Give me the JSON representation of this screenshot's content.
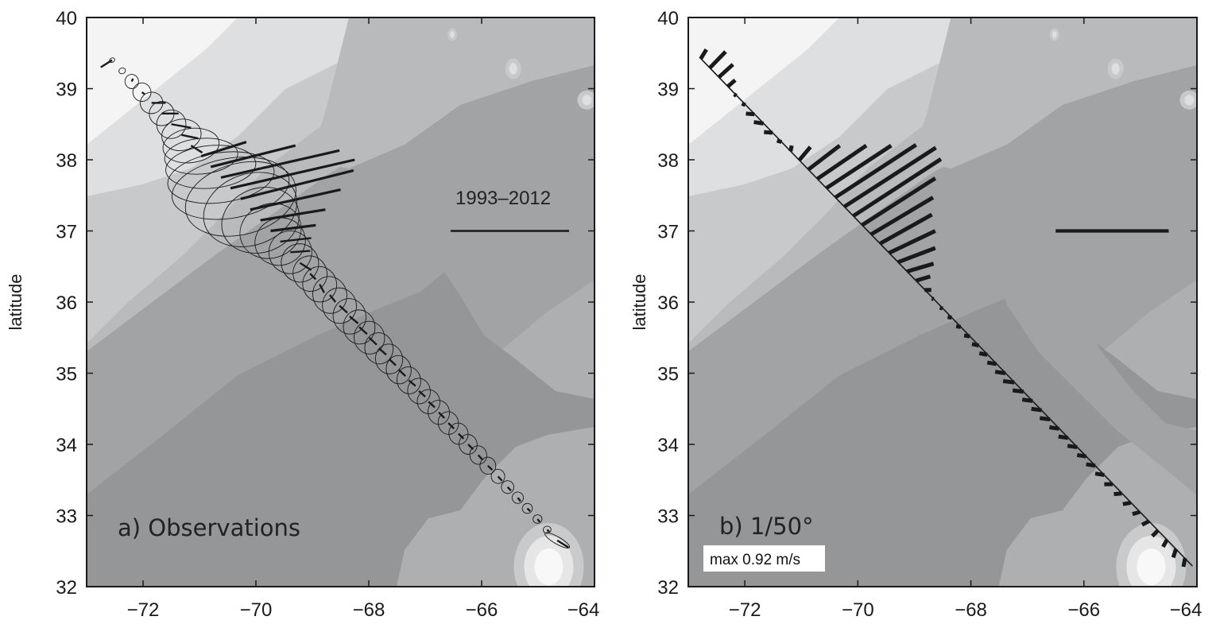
{
  "colors": {
    "contour_levels": [
      "#f4f4f4",
      "#dedfe1",
      "#c8c9cb",
      "#b9babc",
      "#aeafb1",
      "#a2a3a5",
      "#959698"
    ],
    "bermuda_levels": [
      "#c9cacc",
      "#e6e6e7",
      "#f8f8f8"
    ],
    "ink": "#1a1a1a",
    "label_box": "#ffffff"
  },
  "chart_data": [
    {
      "type": "vector-map",
      "panel": "a",
      "label": "a) Observations",
      "annotation": "1993–2012",
      "xlabel": "",
      "ylabel": "latitude",
      "xlim": [
        -73,
        -64
      ],
      "ylim": [
        32,
        40
      ],
      "xticks": [
        -72,
        -70,
        -68,
        -66,
        -64
      ],
      "xtick_labels": [
        "−72",
        "−70",
        "−68",
        "−66",
        "−64"
      ],
      "yticks": [
        32,
        33,
        34,
        35,
        36,
        37,
        38,
        39,
        40
      ],
      "ytick_labels": [
        "32",
        "33",
        "34",
        "35",
        "36",
        "37",
        "38",
        "39",
        "40"
      ],
      "grid": false,
      "scale_bar": {
        "lon": [
          -66.55,
          -64.45
        ],
        "lat": 37.0
      },
      "station_fields": [
        "lon",
        "lat",
        "dlon",
        "dlat",
        "ellipse_major",
        "ellipse_minor",
        "ellipse_angle_deg"
      ],
      "stations": [
        [
          -72.55,
          39.4,
          -0.2,
          -0.1,
          0.05,
          0.03,
          30
        ],
        [
          -72.37,
          39.25,
          0.0,
          0.0,
          0.06,
          0.04,
          20
        ],
        [
          -72.2,
          39.1,
          0.02,
          0.04,
          0.12,
          0.1,
          10
        ],
        [
          -72.02,
          38.95,
          0.05,
          -0.03,
          0.16,
          0.13,
          10
        ],
        [
          -71.85,
          38.8,
          0.25,
          0.0,
          0.2,
          0.15,
          10
        ],
        [
          -71.67,
          38.65,
          0.3,
          0.0,
          0.22,
          0.17,
          15
        ],
        [
          -71.5,
          38.5,
          0.35,
          -0.05,
          0.26,
          0.2,
          15
        ],
        [
          -71.32,
          38.35,
          0.3,
          -0.05,
          0.35,
          0.22,
          10
        ],
        [
          -71.15,
          38.2,
          0.2,
          -0.1,
          0.5,
          0.24,
          8
        ],
        [
          -70.97,
          38.05,
          0.8,
          0.2,
          0.65,
          0.25,
          5
        ],
        [
          -70.8,
          37.9,
          1.5,
          0.3,
          0.8,
          0.3,
          5
        ],
        [
          -70.62,
          37.75,
          2.1,
          0.38,
          0.95,
          0.35,
          8
        ],
        [
          -70.45,
          37.6,
          2.2,
          0.4,
          1.05,
          0.42,
          10
        ],
        [
          -70.27,
          37.45,
          2.0,
          0.4,
          1.0,
          0.5,
          15
        ],
        [
          -70.1,
          37.3,
          1.6,
          0.28,
          0.85,
          0.5,
          20
        ],
        [
          -69.92,
          37.15,
          1.15,
          0.15,
          0.7,
          0.45,
          20
        ],
        [
          -69.74,
          37.0,
          0.8,
          0.08,
          0.55,
          0.38,
          20
        ],
        [
          -69.57,
          36.85,
          0.55,
          0.05,
          0.45,
          0.33,
          20
        ],
        [
          -69.39,
          36.7,
          0.35,
          0.02,
          0.38,
          0.3,
          20
        ],
        [
          -69.22,
          36.55,
          0.2,
          -0.1,
          0.33,
          0.27,
          20
        ],
        [
          -69.04,
          36.4,
          0.1,
          -0.08,
          0.3,
          0.25,
          20
        ],
        [
          -68.87,
          36.25,
          0.08,
          -0.12,
          0.3,
          0.25,
          15
        ],
        [
          -68.69,
          36.1,
          0.1,
          -0.1,
          0.3,
          0.26,
          15
        ],
        [
          -68.52,
          35.95,
          0.14,
          -0.1,
          0.3,
          0.25,
          15
        ],
        [
          -68.34,
          35.8,
          0.15,
          -0.1,
          0.29,
          0.25,
          15
        ],
        [
          -68.17,
          35.65,
          0.14,
          -0.1,
          0.28,
          0.24,
          10
        ],
        [
          -67.99,
          35.5,
          0.13,
          -0.1,
          0.27,
          0.23,
          10
        ],
        [
          -67.82,
          35.35,
          0.13,
          -0.09,
          0.25,
          0.22,
          10
        ],
        [
          -67.64,
          35.2,
          0.12,
          -0.09,
          0.24,
          0.21,
          10
        ],
        [
          -67.47,
          35.05,
          0.12,
          -0.09,
          0.22,
          0.2,
          10
        ],
        [
          -67.29,
          34.9,
          0.12,
          -0.08,
          0.21,
          0.19,
          10
        ],
        [
          -67.11,
          34.75,
          0.11,
          -0.08,
          0.2,
          0.18,
          10
        ],
        [
          -66.94,
          34.6,
          0.11,
          -0.08,
          0.2,
          0.17,
          10
        ],
        [
          -66.76,
          34.45,
          0.1,
          -0.08,
          0.19,
          0.17,
          10
        ],
        [
          -66.59,
          34.3,
          0.1,
          -0.08,
          0.18,
          0.16,
          10
        ],
        [
          -66.41,
          34.15,
          0.09,
          -0.07,
          0.17,
          0.15,
          10
        ],
        [
          -66.24,
          34.0,
          0.09,
          -0.07,
          0.16,
          0.14,
          10
        ],
        [
          -66.06,
          33.85,
          0.08,
          -0.07,
          0.15,
          0.13,
          10
        ],
        [
          -65.89,
          33.7,
          0.08,
          -0.06,
          0.14,
          0.12,
          10
        ],
        [
          -65.71,
          33.55,
          0.07,
          -0.06,
          0.12,
          0.1,
          10
        ],
        [
          -65.54,
          33.4,
          0.06,
          -0.05,
          0.11,
          0.09,
          10
        ],
        [
          -65.36,
          33.25,
          0.05,
          -0.05,
          0.1,
          0.08,
          10
        ],
        [
          -65.19,
          33.1,
          0.05,
          -0.04,
          0.09,
          0.07,
          10
        ],
        [
          -65.01,
          32.95,
          0.04,
          -0.04,
          0.08,
          0.06,
          10
        ],
        [
          -64.84,
          32.8,
          0.04,
          -0.03,
          0.07,
          0.05,
          10
        ],
        [
          -64.66,
          32.65,
          0.2,
          -0.1,
          0.25,
          0.05,
          -30
        ]
      ]
    },
    {
      "type": "vector-map",
      "panel": "b",
      "label": "b) 1/50°",
      "annotation": "max 0.92 m/s",
      "xlabel": "",
      "ylabel": "latitude",
      "xlim": [
        -73,
        -64
      ],
      "ylim": [
        32,
        40
      ],
      "xticks": [
        -72,
        -70,
        -68,
        -66,
        -64
      ],
      "xtick_labels": [
        "−72",
        "−70",
        "−68",
        "−66",
        "−64"
      ],
      "yticks": [
        32,
        33,
        34,
        35,
        36,
        37,
        38,
        39,
        40
      ],
      "ytick_labels": [
        "32",
        "33",
        "34",
        "35",
        "36",
        "37",
        "38",
        "39",
        "40"
      ],
      "grid": false,
      "transect": {
        "start": [
          -72.8,
          39.44
        ],
        "end": [
          -64.08,
          32.29
        ]
      },
      "scale_bar": {
        "lon": [
          -66.5,
          -64.5
        ],
        "lat": 37.0
      },
      "station_fields": [
        "lon",
        "lat",
        "dlon",
        "dlat"
      ],
      "stations": [
        [
          -72.78,
          39.42,
          0.1,
          0.13
        ],
        [
          -72.62,
          39.29,
          0.28,
          0.23
        ],
        [
          -72.46,
          39.16,
          0.25,
          0.18
        ],
        [
          -72.3,
          39.03,
          0.13,
          0.09
        ],
        [
          -72.15,
          38.9,
          -0.04,
          0.02
        ],
        [
          -71.99,
          38.77,
          -0.06,
          0.02
        ],
        [
          -71.83,
          38.64,
          -0.15,
          0.01
        ],
        [
          -71.67,
          38.51,
          -0.17,
          0.02
        ],
        [
          -71.51,
          38.38,
          -0.15,
          0.01
        ],
        [
          -71.35,
          38.25,
          -0.08,
          0.02
        ],
        [
          -71.19,
          38.12,
          0.02,
          0.08
        ],
        [
          -71.04,
          37.99,
          0.2,
          0.19
        ],
        [
          -70.88,
          37.86,
          0.56,
          0.34
        ],
        [
          -70.72,
          37.73,
          0.87,
          0.47
        ],
        [
          -70.56,
          37.6,
          1.15,
          0.6
        ],
        [
          -70.4,
          37.47,
          1.43,
          0.74
        ],
        [
          -70.24,
          37.34,
          1.62,
          0.83
        ],
        [
          -70.08,
          37.21,
          1.55,
          0.8
        ],
        [
          -69.93,
          37.08,
          1.3,
          0.66
        ],
        [
          -69.77,
          36.95,
          1.1,
          0.52
        ],
        [
          -69.61,
          36.82,
          0.92,
          0.41
        ],
        [
          -69.45,
          36.69,
          0.82,
          0.31
        ],
        [
          -69.29,
          36.56,
          0.66,
          0.2
        ],
        [
          -69.13,
          36.43,
          0.47,
          0.11
        ],
        [
          -68.97,
          36.3,
          0.25,
          0.06
        ],
        [
          -68.82,
          36.17,
          0.12,
          0.0
        ],
        [
          -68.66,
          36.04,
          -0.03,
          0.01
        ],
        [
          -68.5,
          35.91,
          -0.05,
          0.01
        ],
        [
          -68.34,
          35.78,
          -0.07,
          0.01
        ],
        [
          -68.18,
          35.65,
          -0.08,
          0.01
        ],
        [
          -68.02,
          35.52,
          -0.1,
          0.01
        ],
        [
          -67.86,
          35.39,
          -0.12,
          0.02
        ],
        [
          -67.71,
          35.26,
          -0.14,
          0.02
        ],
        [
          -67.55,
          35.13,
          -0.16,
          0.02
        ],
        [
          -67.39,
          35.0,
          -0.18,
          0.02
        ],
        [
          -67.23,
          34.87,
          -0.2,
          0.02
        ],
        [
          -67.07,
          34.74,
          -0.19,
          0.02
        ],
        [
          -66.91,
          34.61,
          -0.18,
          0.02
        ],
        [
          -66.75,
          34.48,
          -0.18,
          0.02
        ],
        [
          -66.6,
          34.35,
          -0.18,
          0.02
        ],
        [
          -66.44,
          34.22,
          -0.17,
          0.02
        ],
        [
          -66.28,
          34.09,
          -0.17,
          0.02
        ],
        [
          -66.12,
          33.96,
          -0.17,
          0.02
        ],
        [
          -65.96,
          33.83,
          -0.16,
          0.02
        ],
        [
          -65.8,
          33.7,
          -0.16,
          0.02
        ],
        [
          -65.64,
          33.57,
          -0.16,
          0.02
        ],
        [
          -65.49,
          33.44,
          -0.15,
          0.0
        ],
        [
          -65.33,
          33.31,
          -0.14,
          -0.01
        ],
        [
          -65.17,
          33.18,
          -0.14,
          -0.02
        ],
        [
          -65.01,
          33.05,
          -0.13,
          -0.03
        ],
        [
          -64.85,
          32.92,
          -0.12,
          -0.05
        ],
        [
          -64.69,
          32.79,
          -0.1,
          -0.08
        ],
        [
          -64.53,
          32.66,
          -0.07,
          -0.1
        ],
        [
          -64.37,
          32.53,
          -0.05,
          -0.12
        ],
        [
          -64.21,
          32.4,
          -0.03,
          -0.12
        ]
      ]
    }
  ]
}
